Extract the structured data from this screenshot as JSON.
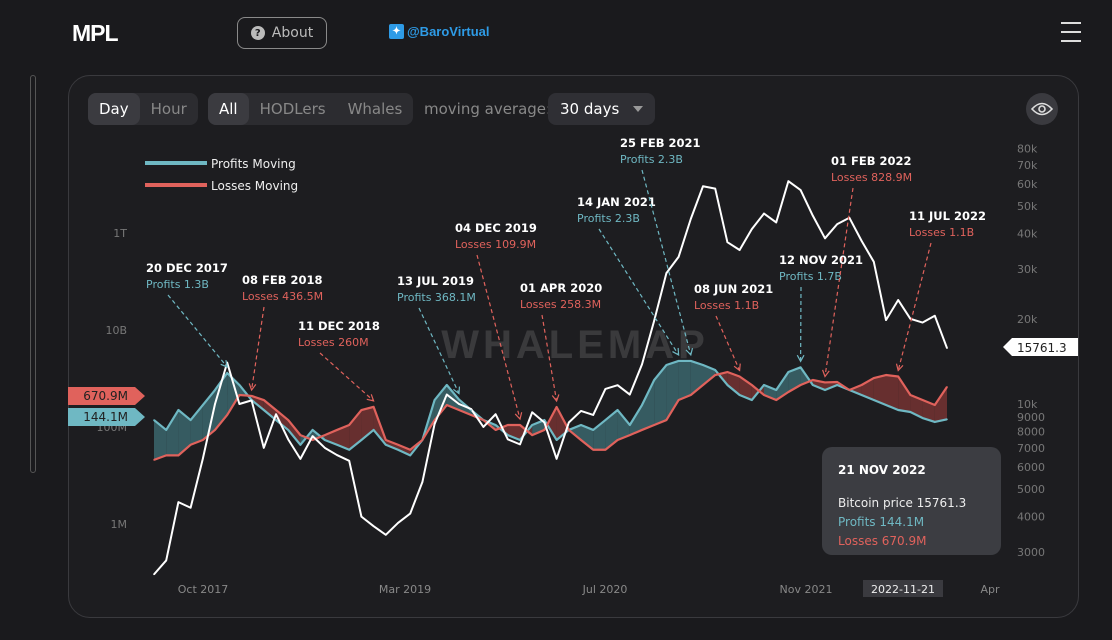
{
  "header": {
    "logo": "MPL",
    "about_label": "About",
    "twitter_handle": "@BaroVirtual"
  },
  "controls": {
    "interval": [
      {
        "label": "Day",
        "active": true
      },
      {
        "label": "Hour",
        "active": false
      }
    ],
    "cohort": [
      {
        "label": "All",
        "active": true
      },
      {
        "label": "HODLers",
        "active": false
      },
      {
        "label": "Whales",
        "active": false
      }
    ],
    "moving_average_label": "moving average:",
    "moving_average_value": "30 days"
  },
  "tooltip": {
    "date": "21 NOV 2022",
    "price": "Bitcoin price 15761.3",
    "profits": "Profits 144.1M",
    "losses": "Losses 670.9M"
  },
  "colors": {
    "profits": "#6fb8c3",
    "losses": "#e0625c",
    "price": "#ffffff",
    "background": "#1d1d20"
  },
  "chart_data": {
    "type": "line",
    "watermark": "WHALEMAP",
    "legend": [
      {
        "name": "Profits Moving",
        "color": "#6fb8c3"
      },
      {
        "name": "Losses Moving",
        "color": "#e0625c"
      }
    ],
    "legend_position": "top-left",
    "x": [
      "2017-06",
      "2017-07",
      "2017-08",
      "2017-09",
      "2017-10",
      "2017-11",
      "2017-12",
      "2018-01",
      "2018-02",
      "2018-03",
      "2018-04",
      "2018-05",
      "2018-06",
      "2018-07",
      "2018-08",
      "2018-09",
      "2018-10",
      "2018-11",
      "2018-12",
      "2019-01",
      "2019-02",
      "2019-03",
      "2019-04",
      "2019-05",
      "2019-06",
      "2019-07",
      "2019-08",
      "2019-09",
      "2019-10",
      "2019-11",
      "2019-12",
      "2020-01",
      "2020-02",
      "2020-03",
      "2020-04",
      "2020-05",
      "2020-06",
      "2020-07",
      "2020-08",
      "2020-09",
      "2020-10",
      "2020-11",
      "2020-12",
      "2021-01",
      "2021-02",
      "2021-03",
      "2021-04",
      "2021-05",
      "2021-06",
      "2021-07",
      "2021-08",
      "2021-09",
      "2021-10",
      "2021-11",
      "2021-12",
      "2022-01",
      "2022-02",
      "2022-03",
      "2022-04",
      "2022-05",
      "2022-06",
      "2022-07",
      "2022-08",
      "2022-09",
      "2022-10",
      "2022-11"
    ],
    "x_ticks": [
      "Oct 2017",
      "Mar 2019",
      "Jul 2020",
      "Nov 2021",
      "Apr"
    ],
    "x_highlight": "2022-11-21",
    "left_axis": {
      "scale": "log",
      "ticks": [
        "1T",
        "10B",
        "100M",
        "1M"
      ]
    },
    "right_axis": {
      "scale": "log",
      "ticks": [
        "80k",
        "70k",
        "60k",
        "50k",
        "40k",
        "30k",
        "20k",
        "10k",
        "9000",
        "8000",
        "7000",
        "6000",
        "5000",
        "4000",
        "3000"
      ]
    },
    "series": [
      {
        "name": "Profits Moving",
        "axis": "left",
        "unit": "M USD",
        "values": [
          139,
          87,
          224,
          139,
          284,
          579,
          1300,
          735,
          360,
          224,
          139,
          87,
          43,
          87,
          54,
          43,
          34,
          54,
          87,
          43,
          34,
          26,
          54,
          360,
          735,
          368,
          224,
          139,
          110,
          68,
          54,
          110,
          139,
          54,
          87,
          110,
          87,
          139,
          224,
          110,
          284,
          931,
          1897,
          2300,
          2300,
          1897,
          1496,
          735,
          457,
          360,
          735,
          579,
          1361,
          1700,
          735,
          579,
          735,
          579,
          457,
          360,
          284,
          224,
          204,
          153,
          127,
          144.1
        ]
      },
      {
        "name": "Losses Moving",
        "axis": "left",
        "unit": "M USD",
        "values": [
          21,
          26,
          26,
          43,
          54,
          87,
          177,
          457,
          436.5,
          360,
          224,
          139,
          68,
          54,
          68,
          87,
          110,
          224,
          260,
          54,
          43,
          34,
          54,
          139,
          284,
          224,
          177,
          139,
          87,
          110,
          109.9,
          68,
          87,
          258.3,
          87,
          54,
          34,
          34,
          54,
          68,
          87,
          110,
          139,
          360,
          457,
          735,
          1180,
          1361,
          1100,
          735,
          457,
          360,
          527,
          735,
          931,
          828.9,
          847,
          579,
          735,
          1023,
          1180,
          1100,
          457,
          360,
          284,
          670.9
        ]
      },
      {
        "axis": "right",
        "unit": "USD",
        "values": [
          2500,
          2800,
          4500,
          4300,
          6400,
          10000,
          14000,
          10000,
          10300,
          7000,
          9200,
          7500,
          6400,
          7700,
          7000,
          6600,
          6300,
          4000,
          3700,
          3450,
          3800,
          4100,
          5300,
          8500,
          10800,
          10000,
          9600,
          8300,
          9200,
          7500,
          7200,
          9350,
          8600,
          6400,
          8600,
          9450,
          9150,
          11300,
          11650,
          10800,
          13800,
          19700,
          29000,
          33100,
          45100,
          58800,
          57700,
          37300,
          35000,
          41500,
          47100,
          43800,
          61300,
          57000,
          46300,
          38500,
          43200,
          45500,
          37700,
          31800,
          19800,
          23300,
          20000,
          19400,
          20500,
          15761.3
        ]
      }
    ],
    "current_markers": {
      "losses": "670.9M",
      "profits": "144.1M",
      "price": "15761.3"
    },
    "annotations": [
      {
        "date": "20 DEC 2017",
        "text": "Profits 1.3B",
        "type": "profits"
      },
      {
        "date": "08 FEB 2018",
        "text": "Losses 436.5M",
        "type": "losses"
      },
      {
        "date": "11 DEC 2018",
        "text": "Losses 260M",
        "type": "losses"
      },
      {
        "date": "13 JUL 2019",
        "text": "Profits 368.1M",
        "type": "profits"
      },
      {
        "date": "04 DEC 2019",
        "text": "Losses 109.9M",
        "type": "losses"
      },
      {
        "date": "01 APR 2020",
        "text": "Losses 258.3M",
        "type": "losses"
      },
      {
        "date": "14 JAN 2021",
        "text": "Profits 2.3B",
        "type": "profits"
      },
      {
        "date": "25 FEB 2021",
        "text": "Profits 2.3B",
        "type": "profits"
      },
      {
        "date": "08 JUN 2021",
        "text": "Losses 1.1B",
        "type": "losses"
      },
      {
        "date": "12 NOV 2021",
        "text": "Profits 1.7B",
        "type": "profits"
      },
      {
        "date": "01 FEB 2022",
        "text": "Losses 828.9M",
        "type": "losses"
      },
      {
        "date": "11 JUL 2022",
        "text": "Losses 1.1B",
        "type": "losses"
      }
    ]
  }
}
